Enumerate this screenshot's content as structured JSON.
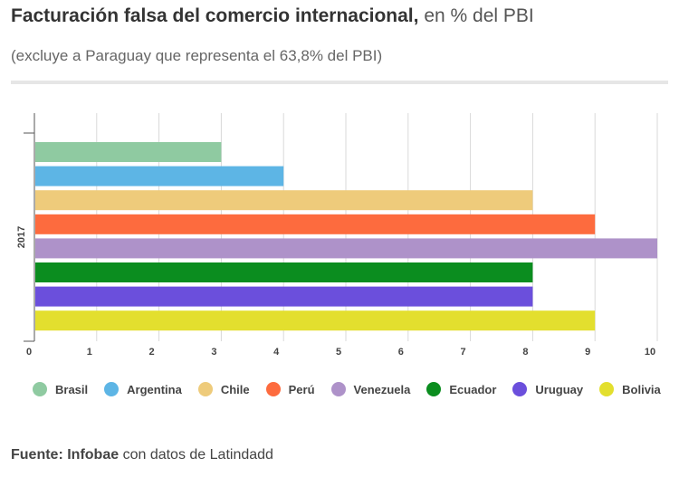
{
  "title": {
    "bold": "Facturación falsa del comercio internacional,",
    "rest": " en % del PBI"
  },
  "subtitle": "(excluye a Paraguay que representa el 63,8% del PBI)",
  "source": {
    "label": "Fuente:",
    "name": "Infobae",
    "rest": " con datos de Latindadd"
  },
  "chart_data": {
    "type": "bar",
    "orientation": "horizontal",
    "categories": [
      "2017"
    ],
    "ylabel": "2017",
    "xlim": [
      0,
      10
    ],
    "xticks": [
      "0",
      "1",
      "2",
      "3",
      "4",
      "5",
      "6",
      "7",
      "8",
      "9",
      "10"
    ],
    "grid": true,
    "legend_position": "bottom",
    "series": [
      {
        "name": "Brasil",
        "values": [
          3
        ],
        "color": "#8fcaa1"
      },
      {
        "name": "Argentina",
        "values": [
          4
        ],
        "color": "#5db5e5"
      },
      {
        "name": "Chile",
        "values": [
          8
        ],
        "color": "#eecb7b"
      },
      {
        "name": "Perú",
        "values": [
          9
        ],
        "color": "#fd6b3e"
      },
      {
        "name": "Venezuela",
        "values": [
          10
        ],
        "color": "#ae92c9"
      },
      {
        "name": "Ecuador",
        "values": [
          8
        ],
        "color": "#0b8d1f"
      },
      {
        "name": "Uruguay",
        "values": [
          8
        ],
        "color": "#6b4fdc"
      },
      {
        "name": "Bolivia",
        "values": [
          9
        ],
        "color": "#e3df2e"
      }
    ]
  }
}
